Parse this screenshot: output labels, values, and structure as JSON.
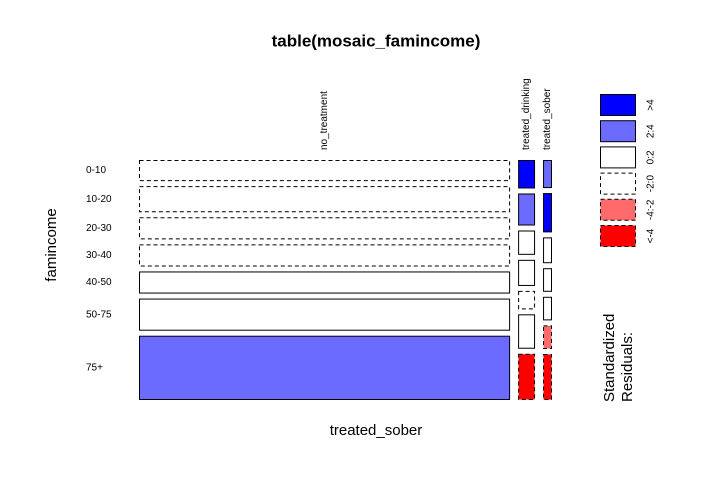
{
  "chart_data": {
    "type": "mosaic",
    "title": "table(mosaic_famincome)",
    "x_label": "treated_sober",
    "y_label": "famincome",
    "categories": [
      "0-10",
      "10-20",
      "20-30",
      "30-40",
      "40-50",
      "50-75",
      "75+"
    ],
    "series": [
      {
        "name": "no_treatment",
        "values": [
          780,
          965,
          816,
          816,
          816,
          1187,
          2374
        ],
        "shades": [
          3,
          3,
          3,
          3,
          2,
          2,
          1
        ]
      },
      {
        "name": "treated_drinking",
        "values": [
          48,
          54,
          41,
          44,
          31,
          58,
          78
        ],
        "shades": [
          0,
          1,
          2,
          2,
          3,
          2,
          5
        ]
      },
      {
        "name": "treated_sober",
        "values": [
          25,
          35,
          23,
          21,
          21,
          21,
          41
        ],
        "shades": [
          1,
          0,
          2,
          2,
          2,
          4,
          5
        ]
      }
    ],
    "legend": {
      "title": [
        "Standardized",
        "Residuals:"
      ],
      "labels": [
        ">4",
        "2:4",
        "0:2",
        "-2:0",
        "-4:-2",
        "<-4"
      ],
      "fills": [
        "#0000ff",
        "#6b6bff",
        "#ffffff",
        "#ffffff",
        "#ff6b6b",
        "#ff0000"
      ],
      "dashed": [
        false,
        false,
        false,
        true,
        true,
        true
      ]
    }
  }
}
